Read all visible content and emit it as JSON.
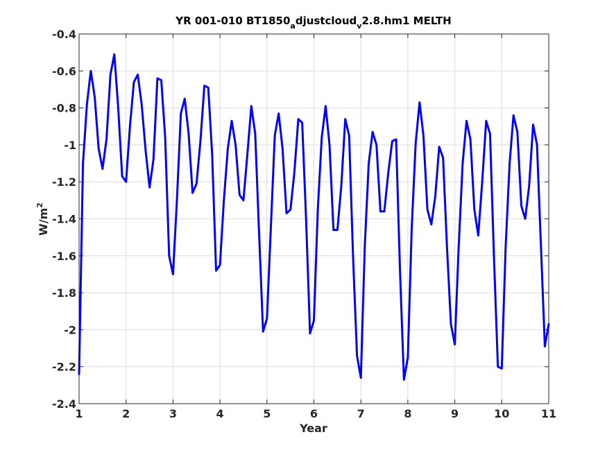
{
  "chart_data": {
    "type": "line",
    "title_parts": {
      "a": "YR 001-010 BT1850",
      "sub1": "a",
      "b": "djustcloud",
      "sub2": "v",
      "c": "2.8.hm1 MELTH"
    },
    "title": "YR 001-010 BT1850_adjustcloud_v2.8.hm1 MELTH",
    "xlabel": "Year",
    "ylabel_base": "W/m",
    "ylabel_sup": "2",
    "xlim": [
      1,
      11
    ],
    "ylim": [
      -2.4,
      -0.4
    ],
    "x_ticks": [
      "1",
      "2",
      "3",
      "4",
      "5",
      "6",
      "7",
      "8",
      "9",
      "10",
      "11"
    ],
    "y_ticks": [
      "-0.4",
      "-0.6",
      "-0.8",
      "-1",
      "-1.2",
      "-1.4",
      "-1.6",
      "-1.8",
      "-2",
      "-2.2",
      "-2.4"
    ],
    "grid": true,
    "line_color": "#0000ff",
    "series": [
      {
        "x": [
          1.0,
          1.083,
          1.167,
          1.25,
          1.333,
          1.417,
          1.5,
          1.583,
          1.667,
          1.75,
          1.833,
          1.917,
          2.0,
          2.083,
          2.167,
          2.25,
          2.333,
          2.417,
          2.5,
          2.583,
          2.667,
          2.75,
          2.833,
          2.917,
          3.0,
          3.083,
          3.167,
          3.25,
          3.333,
          3.417,
          3.5,
          3.583,
          3.667,
          3.75,
          3.833,
          3.917,
          4.0,
          4.083,
          4.167,
          4.25,
          4.333,
          4.417,
          4.5,
          4.583,
          4.667,
          4.75,
          4.833,
          4.917,
          5.0,
          5.083,
          5.167,
          5.25,
          5.333,
          5.417,
          5.5,
          5.583,
          5.667,
          5.75,
          5.833,
          5.917,
          6.0,
          6.083,
          6.167,
          6.25,
          6.333,
          6.417,
          6.5,
          6.583,
          6.667,
          6.75,
          6.833,
          6.917,
          7.0,
          7.083,
          7.167,
          7.25,
          7.333,
          7.417,
          7.5,
          7.583,
          7.667,
          7.75,
          7.833,
          7.917,
          8.0,
          8.083,
          8.167,
          8.25,
          8.333,
          8.417,
          8.5,
          8.583,
          8.667,
          8.75,
          8.833,
          8.917,
          9.0,
          9.083,
          9.167,
          9.25,
          9.333,
          9.417,
          9.5,
          9.583,
          9.667,
          9.75,
          9.833,
          9.917,
          10.0,
          10.083,
          10.167,
          10.25,
          10.333,
          10.417,
          10.5,
          10.583,
          10.667,
          10.75,
          10.833,
          10.917,
          11.0
        ],
        "values": [
          -2.24,
          -1.1,
          -0.78,
          -0.6,
          -0.74,
          -1.02,
          -1.13,
          -0.97,
          -0.62,
          -0.51,
          -0.8,
          -1.17,
          -1.2,
          -0.9,
          -0.66,
          -0.62,
          -0.78,
          -1.03,
          -1.23,
          -1.08,
          -0.64,
          -0.65,
          -0.96,
          -1.6,
          -1.7,
          -1.3,
          -0.83,
          -0.75,
          -0.94,
          -1.26,
          -1.21,
          -0.98,
          -0.68,
          -0.69,
          -1.05,
          -1.68,
          -1.65,
          -1.3,
          -1.02,
          -0.87,
          -1.0,
          -1.27,
          -1.3,
          -1.05,
          -0.79,
          -0.94,
          -1.48,
          -2.01,
          -1.94,
          -1.45,
          -0.95,
          -0.83,
          -1.02,
          -1.37,
          -1.35,
          -1.15,
          -0.86,
          -0.88,
          -1.4,
          -2.02,
          -1.95,
          -1.35,
          -0.96,
          -0.79,
          -1.0,
          -1.46,
          -1.46,
          -1.22,
          -0.86,
          -0.95,
          -1.6,
          -2.14,
          -2.26,
          -1.55,
          -1.1,
          -0.93,
          -1.0,
          -1.36,
          -1.36,
          -1.15,
          -0.98,
          -0.97,
          -1.68,
          -2.27,
          -2.15,
          -1.45,
          -0.99,
          -0.77,
          -0.95,
          -1.35,
          -1.43,
          -1.28,
          -1.01,
          -1.07,
          -1.55,
          -1.97,
          -2.08,
          -1.55,
          -1.1,
          -0.87,
          -0.97,
          -1.35,
          -1.49,
          -1.2,
          -0.87,
          -0.94,
          -1.6,
          -2.2,
          -2.21,
          -1.55,
          -1.1,
          -0.84,
          -0.93,
          -1.33,
          -1.4,
          -1.22,
          -0.89,
          -1.0,
          -1.54,
          -2.09,
          -1.97
        ]
      }
    ]
  }
}
